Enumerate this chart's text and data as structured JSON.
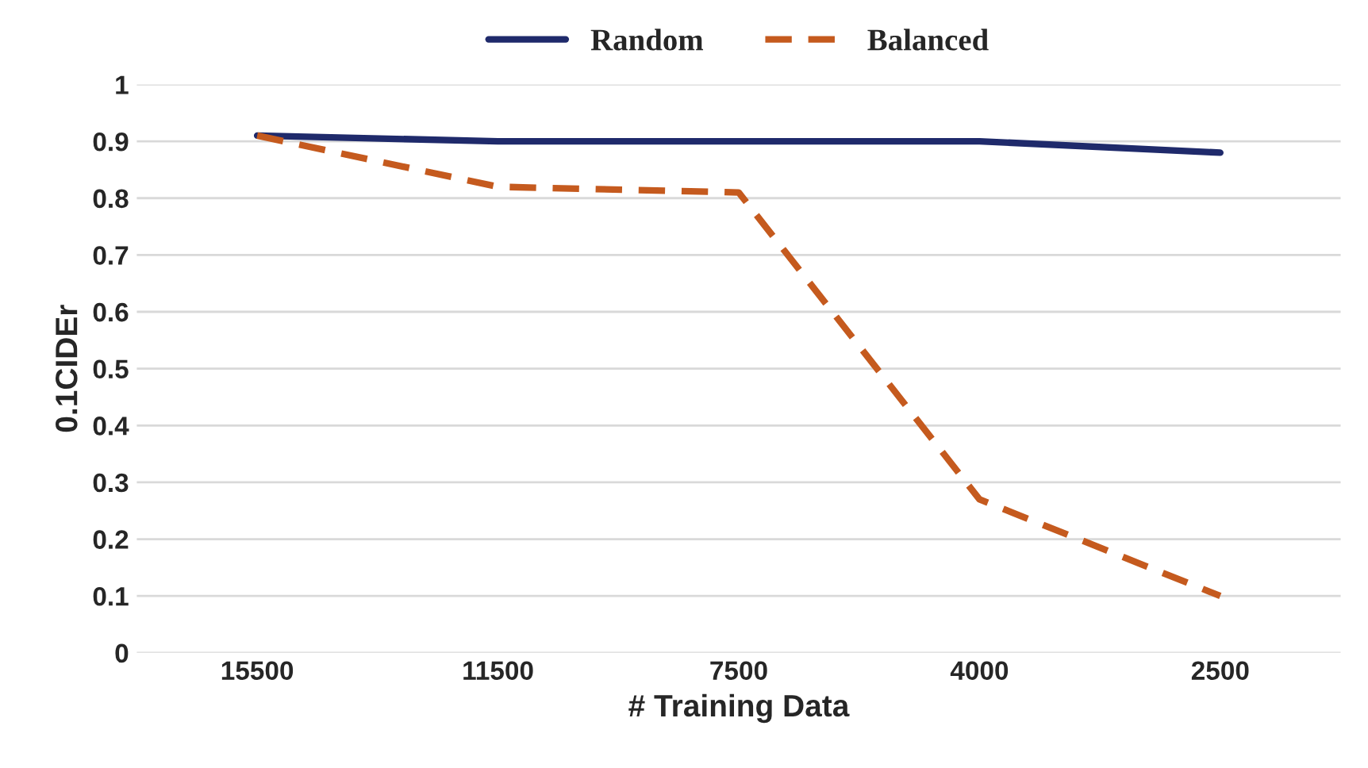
{
  "chart_data": {
    "type": "line",
    "xlabel": "# Training Data",
    "ylabel": "0.1CIDEr",
    "categories": [
      "15500",
      "11500",
      "7500",
      "4000",
      "2500"
    ],
    "series": [
      {
        "name": "Random",
        "color": "#1f2a6b",
        "values": [
          0.91,
          0.9,
          0.9,
          0.9,
          0.88
        ],
        "line_style": "solid"
      },
      {
        "name": "Balanced",
        "color": "#c55a1e",
        "values": [
          0.91,
          0.82,
          0.81,
          0.27,
          0.1
        ],
        "line_style": "dashed"
      }
    ],
    "ylim": [
      0,
      1
    ],
    "yticks": [
      0,
      0.1,
      0.2,
      0.3,
      0.4,
      0.5,
      0.6,
      0.7,
      0.8,
      0.9,
      1
    ],
    "grid": "y",
    "legend": "top",
    "marker": "none"
  }
}
